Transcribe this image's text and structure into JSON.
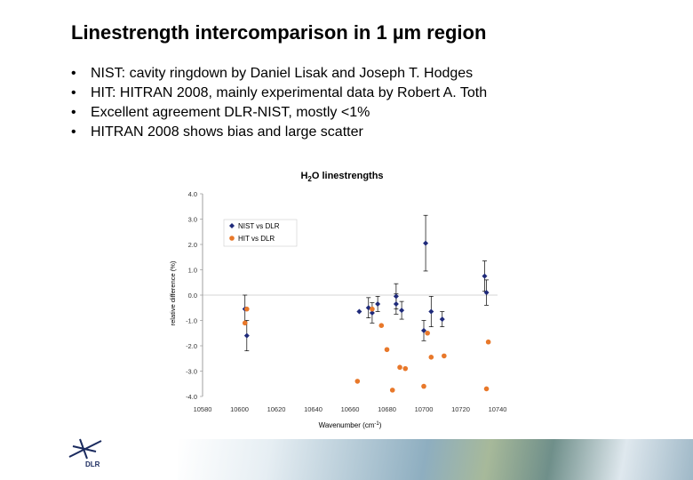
{
  "slide": {
    "title": "Linestrength intercomparison in 1 µm region",
    "bullets": [
      "NIST: cavity ringdown by Daniel Lisak and Joseph T. Hodges",
      "HIT: HITRAN 2008, mainly experimental data by Robert A. Toth",
      "Excellent agreement DLR-NIST, mostly <1%",
      "HITRAN 2008 shows bias and large scatter"
    ],
    "bullet_symbol": "•",
    "logo_text": "DLR"
  },
  "colors": {
    "nist": "#1f2a7a",
    "hit": "#e8782a",
    "error_bar": "#000000"
  },
  "chart_data": {
    "type": "scatter",
    "title": "H2O linestrengths",
    "title_prefix": "H",
    "title_sub": "2",
    "title_suffix": "O linestrengths",
    "xlabel": "Wavenumber (cm",
    "xlabel_sup": "-1",
    "xlabel_end": ")",
    "ylabel": "relative difference (%)",
    "xlim": [
      10580,
      10740
    ],
    "ylim": [
      -4.0,
      4.0
    ],
    "x_ticks": [
      10580,
      10600,
      10620,
      10640,
      10660,
      10680,
      10700,
      10720,
      10740
    ],
    "y_ticks": [
      "4.0",
      "3.0",
      "2.0",
      "1.0",
      "0.0",
      "-1.0",
      "-2.0",
      "-3.0",
      "-4.0"
    ],
    "y_tick_values": [
      4,
      3,
      2,
      1,
      0,
      -1,
      -2,
      -3,
      -4
    ],
    "legend_position": "top-left",
    "series": [
      {
        "name": "NIST vs DLR",
        "key": "nist",
        "marker": "diamond",
        "x": [
          10603,
          10604,
          10665,
          10670,
          10672,
          10675,
          10685,
          10685,
          10688,
          10700,
          10701,
          10704,
          10710,
          10733,
          10734
        ],
        "y": [
          -0.55,
          -1.6,
          -0.65,
          -0.5,
          -0.7,
          -0.35,
          -0.05,
          -0.35,
          -0.6,
          -1.4,
          2.05,
          -0.65,
          -0.95,
          0.75,
          0.1
        ],
        "err": [
          0.55,
          0.6,
          0.0,
          0.4,
          0.4,
          0.3,
          0.5,
          0.4,
          0.35,
          0.4,
          1.1,
          0.6,
          0.3,
          0.6,
          0.5
        ]
      },
      {
        "name": "HIT vs DLR",
        "key": "hit",
        "marker": "circle",
        "x": [
          10603,
          10604,
          10664,
          10672,
          10677,
          10680,
          10683,
          10687,
          10690,
          10700,
          10702,
          10704,
          10711,
          10734,
          10735
        ],
        "y": [
          -1.1,
          -0.55,
          -3.4,
          -0.55,
          -1.2,
          -2.15,
          -3.75,
          -2.85,
          -2.9,
          -3.6,
          -1.5,
          -2.45,
          -2.4,
          -3.7,
          -1.85
        ]
      }
    ]
  }
}
